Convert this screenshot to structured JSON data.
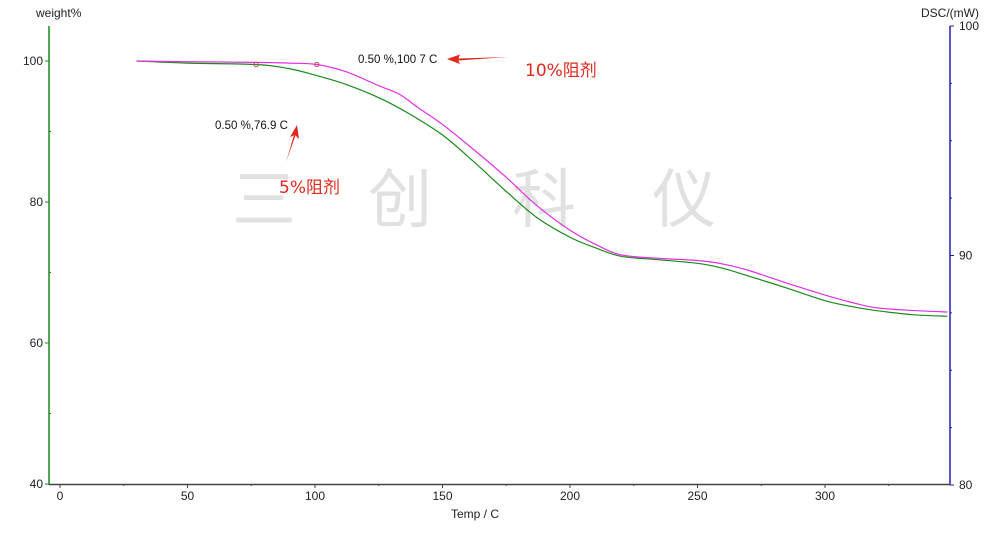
{
  "chart_data": {
    "type": "line",
    "title": "",
    "xlabel": "Temp / C",
    "ylabel": "weight%",
    "y2label": "DSC/(mW)",
    "xlim": [
      -4,
      349
    ],
    "ylim": [
      40,
      105
    ],
    "y2lim": [
      80,
      100
    ],
    "x_ticks": [
      0,
      50,
      100,
      150,
      200,
      250,
      300
    ],
    "y_ticks": [
      40,
      60,
      80,
      100
    ],
    "y2_ticks": [
      80,
      90,
      100
    ],
    "grid": false,
    "legend": null,
    "series": [
      {
        "name": "5%阻剂",
        "color": "#1a8a1a",
        "x": [
          30,
          50,
          77,
          90,
          100,
          112,
          125,
          137,
          150,
          162,
          175,
          187,
          200,
          210,
          220,
          235,
          250,
          260,
          270,
          285,
          300,
          310,
          320,
          335,
          348
        ],
        "y": [
          100,
          99.7,
          99.5,
          98.9,
          98.0,
          96.7,
          94.8,
          92.5,
          89.5,
          85.8,
          81.5,
          77.8,
          75.0,
          73.5,
          72.3,
          71.8,
          71.3,
          70.6,
          69.5,
          67.8,
          66.0,
          65.2,
          64.6,
          64.0,
          63.8
        ]
      },
      {
        "name": "10%阻剂",
        "color": "#e030e0",
        "x": [
          30,
          50,
          77,
          90,
          100.7,
          112,
          125,
          133,
          140,
          150,
          162,
          175,
          187,
          200,
          210,
          220,
          235,
          250,
          260,
          270,
          285,
          300,
          310,
          320,
          335,
          348
        ],
        "y": [
          100,
          99.9,
          99.8,
          99.7,
          99.5,
          98.5,
          96.5,
          95.3,
          93.5,
          91.0,
          87.5,
          83.5,
          79.5,
          76.0,
          74.0,
          72.5,
          72.0,
          71.7,
          71.2,
          70.3,
          68.5,
          66.8,
          65.8,
          65.0,
          64.6,
          64.4
        ]
      }
    ],
    "markers": [
      {
        "series": "5%阻剂",
        "x": 76.9,
        "y": 99.5
      },
      {
        "series": "10%阻剂",
        "x": 100.7,
        "y": 99.5
      }
    ],
    "annotations": [
      {
        "text": "0.50 %,76.9 C",
        "series": "5%阻剂"
      },
      {
        "text": "0.50 %,100.7 C",
        "series": "10%阻剂"
      }
    ]
  },
  "labels": {
    "y_axis_title": "weight%",
    "y2_axis_title": "DSC/(mW)",
    "x_axis_title": "Temp / C",
    "annotation_5": "0.50 %,76.9 C",
    "annotation_10": "0.50 %,100 7 C",
    "series_label_5": "5%阻剂",
    "series_label_10": "10%阻剂",
    "watermark": [
      "三",
      "创",
      "科",
      "仪"
    ]
  },
  "colors": {
    "left_axis": "#1a8a1a",
    "right_axis": "#2020b0",
    "x_axis": "#444444",
    "arrow": "#e0281e"
  }
}
